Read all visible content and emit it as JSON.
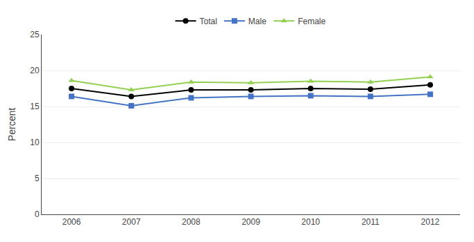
{
  "chart_data": {
    "type": "line",
    "x": [
      2006,
      2007,
      2008,
      2009,
      2010,
      2011,
      2012
    ],
    "xlim": [
      2005.5,
      2012.5
    ],
    "xticks": [
      2006,
      2007,
      2008,
      2009,
      2010,
      2011,
      2012
    ],
    "ylabel": "Percent",
    "ylim": [
      0,
      25
    ],
    "yticks": [
      0,
      5,
      10,
      15,
      20,
      25
    ],
    "grid": "y",
    "legend": "top",
    "series": [
      {
        "name": "Total",
        "color": "#000000",
        "marker": "circle",
        "values": [
          17.5,
          16.4,
          17.3,
          17.3,
          17.5,
          17.4,
          18.0
        ]
      },
      {
        "name": "Male",
        "color": "#4472c4",
        "marker": "square",
        "values": [
          16.4,
          15.1,
          16.2,
          16.4,
          16.5,
          16.4,
          16.7
        ]
      },
      {
        "name": "Female",
        "color": "#92d050",
        "marker": "triangle",
        "values": [
          18.6,
          17.3,
          18.4,
          18.3,
          18.5,
          18.4,
          19.1
        ]
      }
    ]
  }
}
